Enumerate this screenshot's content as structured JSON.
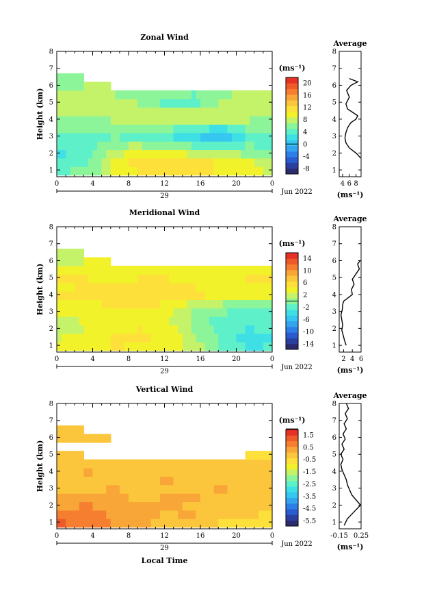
{
  "figure": {
    "x_axis_label": "Local Time",
    "date_label": "29",
    "month_label": "Jun 2022",
    "y_axis_label": "Height (km)",
    "unit_label": "(ms⁻¹)",
    "avg_title": "Average",
    "colors": [
      "#2b2b6e",
      "#2a3fa0",
      "#2a5ccf",
      "#2e7ee8",
      "#35a4f0",
      "#36c7f0",
      "#3ee0e6",
      "#5ef0c8",
      "#8cf59a",
      "#c4f36a",
      "#f2f22a",
      "#fde03a",
      "#fcc63c",
      "#f9a638",
      "#f57e30",
      "#ef5a2a",
      "#e53224"
    ]
  },
  "chart_data": [
    {
      "type": "heatmap",
      "title": "Zonal Wind",
      "x_ticks": [
        "0",
        "4",
        "8",
        "12",
        "16",
        "20",
        "0"
      ],
      "y_ticks": [
        "1",
        "2",
        "3",
        "4",
        "5",
        "6",
        "7",
        "8"
      ],
      "xlim": [
        0,
        24
      ],
      "ylim": [
        0.6,
        8.0
      ],
      "colorbar_ticks": [
        "20",
        "16",
        "12",
        "8",
        "4",
        "0",
        "-4",
        "-8"
      ],
      "colorbar_range": [
        -10,
        22
      ],
      "heights": [
        0.7,
        1.2,
        1.7,
        2.2,
        2.7,
        3.2,
        3.7,
        4.2,
        4.7,
        5.2,
        5.7,
        6.2
      ],
      "times": [
        0,
        3,
        6,
        9,
        12,
        15,
        18,
        21,
        24
      ],
      "values": [
        [
          5,
          6,
          9,
          11,
          12,
          11,
          10,
          9,
          8
        ],
        [
          4,
          5,
          10,
          12,
          13,
          12,
          11,
          10,
          7
        ],
        [
          3,
          4,
          9,
          10,
          11,
          9,
          8,
          7,
          6
        ],
        [
          3,
          4,
          7,
          8,
          7,
          6,
          6,
          6,
          5
        ],
        [
          4,
          4,
          5,
          4,
          3,
          1,
          0,
          3,
          5
        ],
        [
          5,
          5,
          6,
          6,
          5,
          3,
          1,
          5,
          6
        ],
        [
          6,
          6,
          7,
          7,
          7,
          7,
          7,
          7,
          6
        ],
        [
          7,
          7,
          7,
          8,
          8,
          8,
          8,
          7,
          7
        ],
        [
          8,
          8,
          8,
          7,
          4,
          4,
          8,
          8,
          8
        ],
        [
          8,
          8,
          7,
          6,
          6,
          5,
          6,
          8,
          8
        ],
        [
          7,
          7,
          null,
          null,
          null,
          null,
          null,
          null,
          null
        ],
        [
          6,
          null,
          null,
          null,
          null,
          null,
          null,
          null,
          null
        ]
      ],
      "avg": {
        "xlim": [
          3,
          9.5
        ],
        "x_ticks": [
          "4",
          "6",
          "8"
        ],
        "unit_label": "(ms⁻¹)",
        "x": [
          9.4,
          8.0,
          6.0,
          5.0,
          4.7,
          5.0,
          5.5,
          6.5,
          8.0,
          8.5,
          7.0,
          5.5,
          5.0,
          6.0,
          5.2,
          6.5,
          8.5,
          6.0
        ],
        "y": [
          1.7,
          2.0,
          2.3,
          2.6,
          2.9,
          3.2,
          3.5,
          3.8,
          4.0,
          4.2,
          4.4,
          4.6,
          4.9,
          5.3,
          5.7,
          6.0,
          6.2,
          6.4
        ]
      }
    },
    {
      "type": "heatmap",
      "title": "Meridional Wind",
      "x_ticks": [
        "0",
        "4",
        "8",
        "12",
        "16",
        "20",
        "0"
      ],
      "y_ticks": [
        "1",
        "2",
        "3",
        "4",
        "5",
        "6",
        "7",
        "8"
      ],
      "xlim": [
        0,
        24
      ],
      "ylim": [
        0.6,
        8.0
      ],
      "colorbar_ticks": [
        "14",
        "10",
        "6",
        "2",
        "-2",
        "-6",
        "-10",
        "-14"
      ],
      "colorbar_range": [
        -16,
        16
      ],
      "heights": [
        0.7,
        1.2,
        1.7,
        2.2,
        2.7,
        3.2,
        3.7,
        4.2,
        4.7,
        5.2,
        5.7,
        6.2
      ],
      "times": [
        0,
        3,
        6,
        9,
        12,
        15,
        18,
        21,
        24
      ],
      "values": [
        [
          3,
          4,
          5,
          4,
          3,
          2,
          -1,
          -3,
          -2
        ],
        [
          3,
          4,
          5,
          5,
          4,
          1,
          -2,
          -4,
          -3
        ],
        [
          2,
          3,
          4,
          5,
          4,
          1,
          -2,
          -3,
          -2
        ],
        [
          2,
          3,
          3,
          4,
          3,
          0,
          -2,
          -3,
          -2
        ],
        [
          3,
          4,
          4,
          4,
          3,
          0,
          -1,
          -2,
          -1
        ],
        [
          4,
          4,
          5,
          5,
          4,
          1,
          0,
          -1,
          0
        ],
        [
          5,
          5,
          5,
          6,
          6,
          5,
          4,
          3,
          3
        ],
        [
          4,
          5,
          5,
          6,
          6,
          5,
          4,
          4,
          3
        ],
        [
          5,
          5,
          4,
          5,
          5,
          4,
          4,
          5,
          5
        ],
        [
          4,
          4,
          4,
          4,
          4,
          4,
          4,
          4,
          4
        ],
        [
          3,
          3,
          null,
          null,
          null,
          null,
          null,
          null,
          null
        ],
        [
          2,
          null,
          null,
          null,
          null,
          null,
          null,
          null,
          null
        ]
      ],
      "avg": {
        "xlim": [
          1,
          6
        ],
        "x_ticks": [
          "2",
          "4",
          "6"
        ],
        "unit_label": "(ms⁻¹)",
        "x": [
          2.6,
          2.2,
          1.9,
          1.6,
          1.8,
          1.6,
          1.4,
          1.7,
          1.8,
          2.0,
          3.0,
          4.0,
          3.8,
          4.4,
          4.0,
          4.8,
          5.6,
          5.2,
          5.8
        ],
        "y": [
          1.0,
          1.3,
          1.6,
          1.9,
          2.2,
          2.5,
          2.8,
          3.1,
          3.4,
          3.6,
          3.8,
          4.0,
          4.3,
          4.6,
          4.9,
          5.2,
          5.5,
          5.8,
          6.0
        ]
      }
    },
    {
      "type": "heatmap",
      "title": "Vertical Wind",
      "x_ticks": [
        "0",
        "4",
        "8",
        "12",
        "16",
        "20",
        "0"
      ],
      "y_ticks": [
        "1",
        "2",
        "3",
        "4",
        "5",
        "6",
        "7",
        "8"
      ],
      "xlim": [
        0,
        24
      ],
      "ylim": [
        0.6,
        8.0
      ],
      "colorbar_ticks": [
        "1.5",
        "0.5",
        "-0.5",
        "-1.5",
        "-2.5",
        "-3.5",
        "-4.5",
        "-5.5"
      ],
      "colorbar_range": [
        -6,
        2
      ],
      "heights": [
        0.7,
        1.2,
        1.7,
        2.2,
        2.7,
        3.2,
        3.7,
        4.2,
        4.7,
        5.2,
        5.7,
        6.2
      ],
      "times": [
        0,
        3,
        6,
        9,
        12,
        15,
        18,
        21,
        24
      ],
      "values": [
        [
          1.2,
          1.0,
          0.6,
          0.2,
          -0.2,
          0.0,
          -0.4,
          -0.6,
          -0.6
        ],
        [
          0.8,
          1.0,
          0.4,
          0.4,
          0.0,
          0.2,
          -0.4,
          -0.4,
          -0.6
        ],
        [
          0.4,
          0.8,
          0.2,
          0.2,
          0.2,
          0.0,
          0.0,
          0.0,
          -0.2
        ],
        [
          0.2,
          0.4,
          0.2,
          0.0,
          0.2,
          0.2,
          0.0,
          0.0,
          -0.2
        ],
        [
          0.0,
          0.0,
          0.2,
          0.0,
          0.0,
          0.0,
          0.2,
          0.0,
          -0.2
        ],
        [
          0.0,
          0.0,
          0.0,
          0.0,
          0.2,
          0.0,
          0.0,
          0.0,
          0.0
        ],
        [
          0.0,
          0.2,
          0.0,
          0.0,
          0.0,
          0.0,
          -0.2,
          0.0,
          0.0
        ],
        [
          -0.2,
          0.0,
          -0.2,
          0.0,
          0.0,
          -0.2,
          0.0,
          0.0,
          -0.2
        ],
        [
          -0.2,
          null,
          null,
          null,
          null,
          null,
          null,
          null,
          -0.4
        ],
        [
          null,
          null,
          null,
          null,
          null,
          null,
          null,
          null,
          null
        ],
        [
          0.0,
          0.0,
          null,
          null,
          null,
          null,
          null,
          null,
          null
        ],
        [
          0.0,
          null,
          null,
          null,
          null,
          null,
          null,
          null,
          null
        ]
      ],
      "avg": {
        "xlim": [
          -0.15,
          0.25
        ],
        "x_ticks": [
          "-0.15",
          "0.25"
        ],
        "unit_label": "(ms⁻¹)",
        "x": [
          -0.06,
          0.0,
          0.12,
          0.24,
          0.16,
          0.08,
          0.04,
          0.0,
          -0.02,
          -0.06,
          -0.1,
          -0.12,
          -0.08,
          -0.12,
          -0.06,
          -0.1,
          -0.04,
          -0.08,
          -0.02,
          -0.06,
          0.0,
          -0.04,
          0.02,
          -0.02
        ],
        "y": [
          0.8,
          1.2,
          1.6,
          2.0,
          2.3,
          2.6,
          2.9,
          3.2,
          3.5,
          3.8,
          4.1,
          4.4,
          4.7,
          5.0,
          5.3,
          5.6,
          5.9,
          6.2,
          6.5,
          6.8,
          7.1,
          7.4,
          7.7,
          8.0
        ]
      }
    }
  ]
}
